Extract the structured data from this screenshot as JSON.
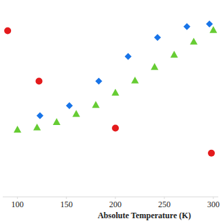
{
  "chart_data": {
    "type": "scatter",
    "x_label": "Absolute Temperature (K)",
    "xlim": [
      85,
      305
    ],
    "xticks": [
      100,
      150,
      200,
      250,
      300
    ],
    "ylim": [
      0,
      100
    ],
    "tick_labels": "x",
    "grid": false,
    "series": [
      {
        "color": "#e41a1c",
        "marker": "circle",
        "x": [
          90,
          122,
          200,
          298
        ],
        "values": [
          85.6,
          59.6,
          35.4,
          22.5
        ]
      },
      {
        "color": "#1874e8",
        "marker": "diamond",
        "x": [
          123,
          153,
          183,
          213,
          243,
          273,
          296
        ],
        "values": [
          41.8,
          47.0,
          59.6,
          72.3,
          82.1,
          87.7,
          89.1
        ]
      },
      {
        "color": "#66cc33",
        "marker": "triangle",
        "x": [
          100,
          120,
          140,
          160,
          180,
          200,
          220,
          240,
          260,
          280,
          300
        ],
        "values": [
          34.7,
          35.8,
          38.6,
          42.8,
          47.4,
          53.7,
          60.0,
          67.0,
          73.3,
          80.0,
          86.0
        ]
      }
    ]
  }
}
